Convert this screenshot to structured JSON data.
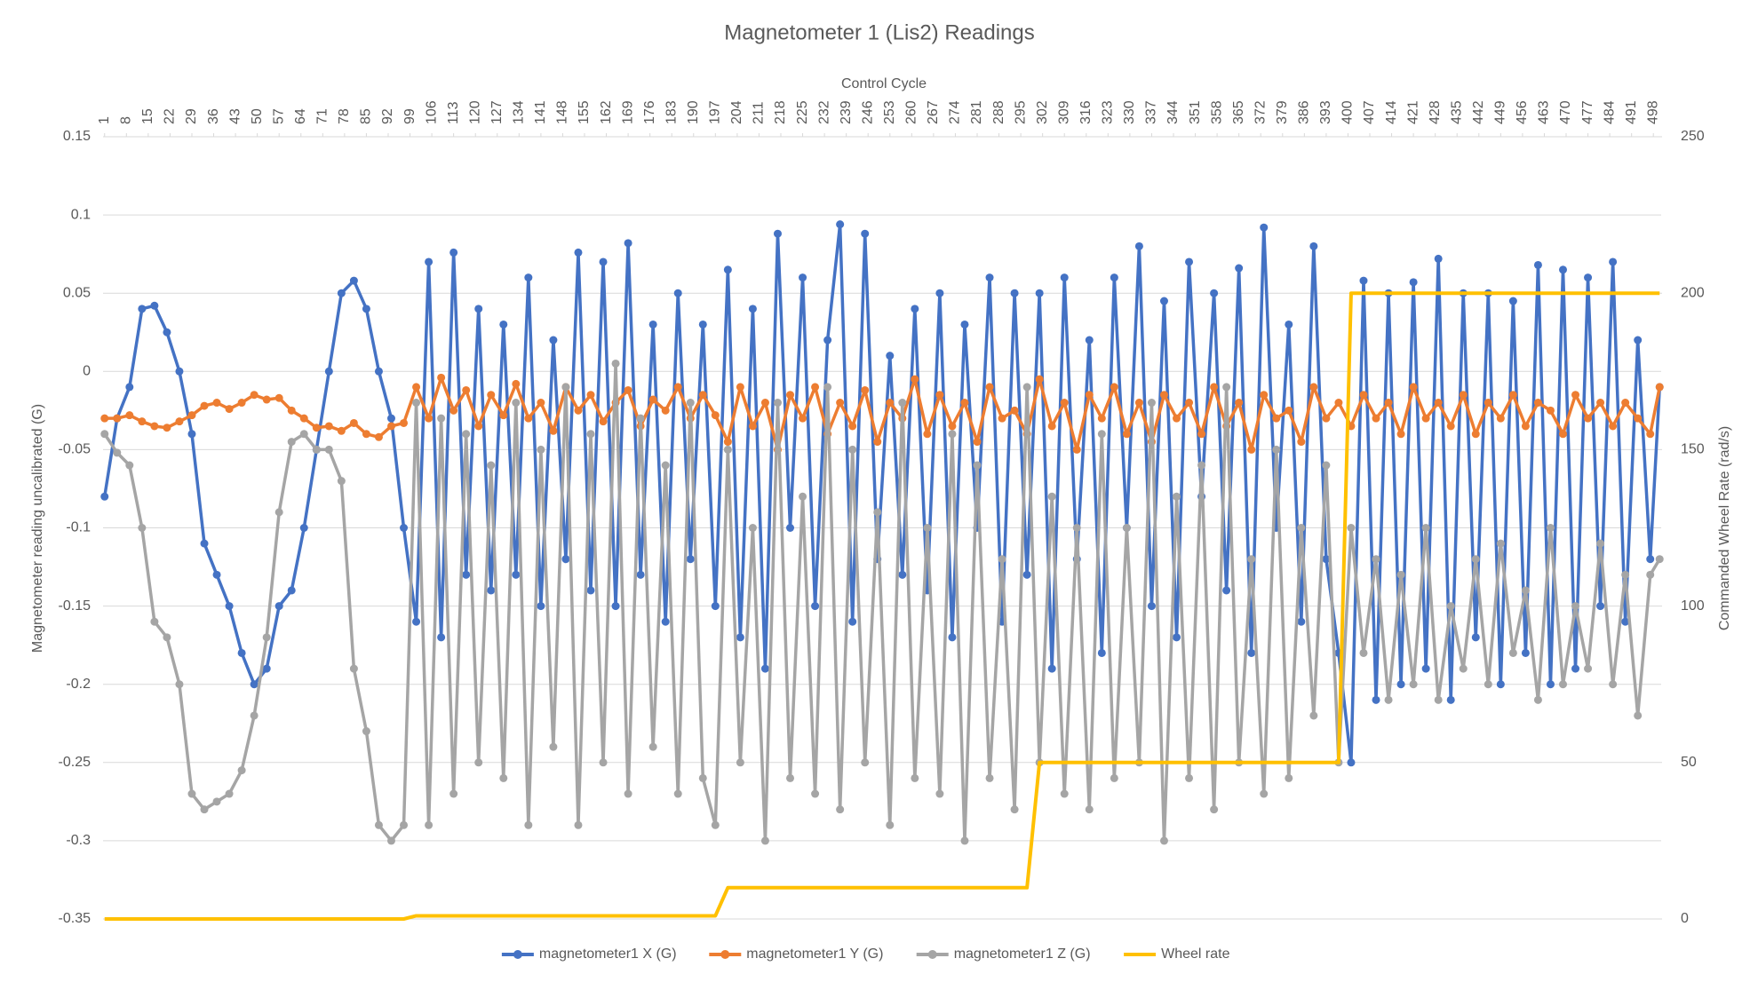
{
  "chart_data": {
    "type": "line",
    "title": "Magnetometer 1 (Lis2) Readings",
    "x_label": "Control Cycle",
    "y_label": "Magnetometer reading uncalibrated (G)",
    "y2_label": "Commanded Wheel Rate (rad/s)",
    "x": [
      1,
      5,
      9,
      13,
      17,
      21,
      25,
      29,
      33,
      37,
      41,
      45,
      49,
      53,
      57,
      61,
      65,
      69,
      73,
      77,
      81,
      85,
      89,
      93,
      97,
      101,
      105,
      109,
      113,
      117,
      121,
      125,
      129,
      133,
      137,
      141,
      145,
      149,
      153,
      157,
      161,
      165,
      169,
      173,
      177,
      181,
      185,
      189,
      193,
      197,
      201,
      205,
      209,
      213,
      217,
      221,
      225,
      229,
      233,
      237,
      241,
      245,
      249,
      253,
      257,
      261,
      265,
      269,
      273,
      277,
      281,
      285,
      289,
      293,
      297,
      301,
      305,
      309,
      313,
      317,
      321,
      325,
      329,
      333,
      337,
      341,
      345,
      349,
      353,
      357,
      361,
      365,
      369,
      373,
      377,
      381,
      385,
      389,
      393,
      397,
      401,
      405,
      409,
      413,
      417,
      421,
      425,
      429,
      433,
      437,
      441,
      445,
      449,
      453,
      457,
      461,
      465,
      469,
      473,
      477,
      481,
      485,
      489,
      493,
      497,
      500
    ],
    "xlim": [
      0.5,
      500.5
    ],
    "xticks": [
      1,
      8,
      15,
      22,
      29,
      36,
      43,
      50,
      57,
      64,
      71,
      78,
      85,
      92,
      99,
      106,
      113,
      120,
      127,
      134,
      141,
      148,
      155,
      162,
      169,
      176,
      183,
      190,
      197,
      204,
      211,
      218,
      225,
      232,
      239,
      246,
      253,
      260,
      267,
      274,
      281,
      288,
      295,
      302,
      309,
      316,
      323,
      330,
      337,
      344,
      351,
      358,
      365,
      372,
      379,
      386,
      393,
      400,
      407,
      414,
      421,
      428,
      435,
      442,
      449,
      456,
      463,
      470,
      477,
      484,
      491,
      498
    ],
    "ylim": [
      -0.35,
      0.15
    ],
    "yticks": [
      -0.35,
      -0.3,
      -0.25,
      -0.2,
      -0.15,
      -0.1,
      -0.05,
      0,
      0.05,
      0.1,
      0.15
    ],
    "y2lim": [
      0,
      250
    ],
    "y2ticks": [
      0,
      50,
      100,
      150,
      200,
      250
    ],
    "grid": true,
    "legend": "bottom",
    "series": [
      {
        "name": "magnetometer1 X (G)",
        "color": "#4472c4",
        "marker": "circle",
        "values": [
          -0.08,
          -0.03,
          -0.01,
          0.04,
          0.042,
          0.025,
          0.0,
          -0.04,
          -0.11,
          -0.13,
          -0.15,
          -0.18,
          -0.2,
          -0.19,
          -0.15,
          -0.14,
          -0.1,
          -0.05,
          0.0,
          0.05,
          0.058,
          0.04,
          0.0,
          -0.03,
          -0.1,
          -0.16,
          0.07,
          -0.17,
          0.076,
          -0.13,
          0.04,
          -0.14,
          0.03,
          -0.13,
          0.06,
          -0.15,
          0.02,
          -0.12,
          0.076,
          -0.14,
          0.07,
          -0.15,
          0.082,
          -0.13,
          0.03,
          -0.16,
          0.05,
          -0.12,
          0.03,
          -0.15,
          0.065,
          -0.17,
          0.04,
          -0.19,
          0.088,
          -0.1,
          0.06,
          -0.15,
          0.02,
          0.094,
          -0.16,
          0.088,
          -0.12,
          0.01,
          -0.13,
          0.04,
          -0.14,
          0.05,
          -0.17,
          0.03,
          -0.1,
          0.06,
          -0.16,
          0.05,
          -0.13,
          0.05,
          -0.19,
          0.06,
          -0.12,
          0.02,
          -0.18,
          0.06,
          -0.1,
          0.08,
          -0.15,
          0.045,
          -0.17,
          0.07,
          -0.08,
          0.05,
          -0.14,
          0.066,
          -0.18,
          0.092,
          -0.1,
          0.03,
          -0.16,
          0.08,
          -0.12,
          -0.18,
          -0.25,
          0.058,
          -0.21,
          0.05,
          -0.2,
          0.057,
          -0.19,
          0.072,
          -0.21,
          0.05,
          -0.17,
          0.05,
          -0.2,
          0.045,
          -0.18,
          0.068,
          -0.2,
          0.065,
          -0.19,
          0.06,
          -0.15,
          0.07,
          -0.16,
          0.02,
          -0.12,
          -0.01
        ]
      },
      {
        "name": "magnetometer1 Y (G)",
        "color": "#ed7d31",
        "marker": "circle",
        "values": [
          -0.03,
          -0.03,
          -0.028,
          -0.032,
          -0.035,
          -0.036,
          -0.032,
          -0.028,
          -0.022,
          -0.02,
          -0.024,
          -0.02,
          -0.015,
          -0.018,
          -0.017,
          -0.025,
          -0.03,
          -0.036,
          -0.035,
          -0.038,
          -0.033,
          -0.04,
          -0.042,
          -0.035,
          -0.033,
          -0.01,
          -0.03,
          -0.004,
          -0.025,
          -0.012,
          -0.035,
          -0.015,
          -0.028,
          -0.008,
          -0.03,
          -0.02,
          -0.038,
          -0.01,
          -0.025,
          -0.015,
          -0.032,
          -0.02,
          -0.012,
          -0.035,
          -0.018,
          -0.025,
          -0.01,
          -0.03,
          -0.015,
          -0.028,
          -0.045,
          -0.01,
          -0.035,
          -0.02,
          -0.05,
          -0.015,
          -0.03,
          -0.01,
          -0.04,
          -0.02,
          -0.035,
          -0.012,
          -0.045,
          -0.02,
          -0.03,
          -0.005,
          -0.04,
          -0.015,
          -0.035,
          -0.02,
          -0.045,
          -0.01,
          -0.03,
          -0.025,
          -0.04,
          -0.005,
          -0.035,
          -0.02,
          -0.05,
          -0.015,
          -0.03,
          -0.01,
          -0.04,
          -0.02,
          -0.045,
          -0.015,
          -0.03,
          -0.02,
          -0.04,
          -0.01,
          -0.035,
          -0.02,
          -0.05,
          -0.015,
          -0.03,
          -0.025,
          -0.045,
          -0.01,
          -0.03,
          -0.02,
          -0.035,
          -0.015,
          -0.03,
          -0.02,
          -0.04,
          -0.01,
          -0.03,
          -0.02,
          -0.035,
          -0.015,
          -0.04,
          -0.02,
          -0.03,
          -0.015,
          -0.035,
          -0.02,
          -0.025,
          -0.04,
          -0.015,
          -0.03,
          -0.02,
          -0.035,
          -0.02,
          -0.03,
          -0.04,
          -0.01
        ]
      },
      {
        "name": "magnetometer1 Z (G)",
        "color": "#a5a5a5",
        "marker": "circle",
        "values": [
          -0.04,
          -0.052,
          -0.06,
          -0.1,
          -0.16,
          -0.17,
          -0.2,
          -0.27,
          -0.28,
          -0.275,
          -0.27,
          -0.255,
          -0.22,
          -0.17,
          -0.09,
          -0.045,
          -0.04,
          -0.05,
          -0.05,
          -0.07,
          -0.19,
          -0.23,
          -0.29,
          -0.3,
          -0.29,
          -0.02,
          -0.29,
          -0.03,
          -0.27,
          -0.04,
          -0.25,
          -0.06,
          -0.26,
          -0.02,
          -0.29,
          -0.05,
          -0.24,
          -0.01,
          -0.29,
          -0.04,
          -0.25,
          0.005,
          -0.27,
          -0.03,
          -0.24,
          -0.06,
          -0.27,
          -0.02,
          -0.26,
          -0.29,
          -0.05,
          -0.25,
          -0.1,
          -0.3,
          -0.02,
          -0.26,
          -0.08,
          -0.27,
          -0.01,
          -0.28,
          -0.05,
          -0.25,
          -0.09,
          -0.29,
          -0.02,
          -0.26,
          -0.1,
          -0.27,
          -0.04,
          -0.3,
          -0.06,
          -0.26,
          -0.12,
          -0.28,
          -0.01,
          -0.25,
          -0.08,
          -0.27,
          -0.1,
          -0.28,
          -0.04,
          -0.26,
          -0.1,
          -0.25,
          -0.02,
          -0.3,
          -0.08,
          -0.26,
          -0.06,
          -0.28,
          -0.01,
          -0.25,
          -0.12,
          -0.27,
          -0.05,
          -0.26,
          -0.1,
          -0.22,
          -0.06,
          -0.25,
          -0.1,
          -0.18,
          -0.12,
          -0.21,
          -0.13,
          -0.2,
          -0.1,
          -0.21,
          -0.15,
          -0.19,
          -0.12,
          -0.2,
          -0.11,
          -0.18,
          -0.14,
          -0.21,
          -0.1,
          -0.2,
          -0.15,
          -0.19,
          -0.11,
          -0.2,
          -0.13,
          -0.22,
          -0.13,
          -0.12
        ]
      },
      {
        "name": "Wheel rate",
        "color": "#ffc000",
        "axis": "y2",
        "values": [
          0,
          0,
          0,
          0,
          0,
          0,
          0,
          0,
          0,
          0,
          0,
          0,
          0,
          0,
          0,
          0,
          0,
          0,
          0,
          0,
          0,
          0,
          0,
          0,
          0,
          1,
          1,
          1,
          1,
          1,
          1,
          1,
          1,
          1,
          1,
          1,
          1,
          1,
          1,
          1,
          1,
          1,
          1,
          1,
          1,
          1,
          1,
          1,
          1,
          1,
          10,
          10,
          10,
          10,
          10,
          10,
          10,
          10,
          10,
          10,
          10,
          10,
          10,
          10,
          10,
          10,
          10,
          10,
          10,
          10,
          10,
          10,
          10,
          10,
          10,
          50,
          50,
          50,
          50,
          50,
          50,
          50,
          50,
          50,
          50,
          50,
          50,
          50,
          50,
          50,
          50,
          50,
          50,
          50,
          50,
          50,
          50,
          50,
          50,
          50,
          200,
          200,
          200,
          200,
          200,
          200,
          200,
          200,
          200,
          200,
          200,
          200,
          200,
          200,
          200,
          200,
          200,
          200,
          200,
          200,
          200,
          200,
          200,
          200,
          200,
          200
        ]
      }
    ]
  }
}
